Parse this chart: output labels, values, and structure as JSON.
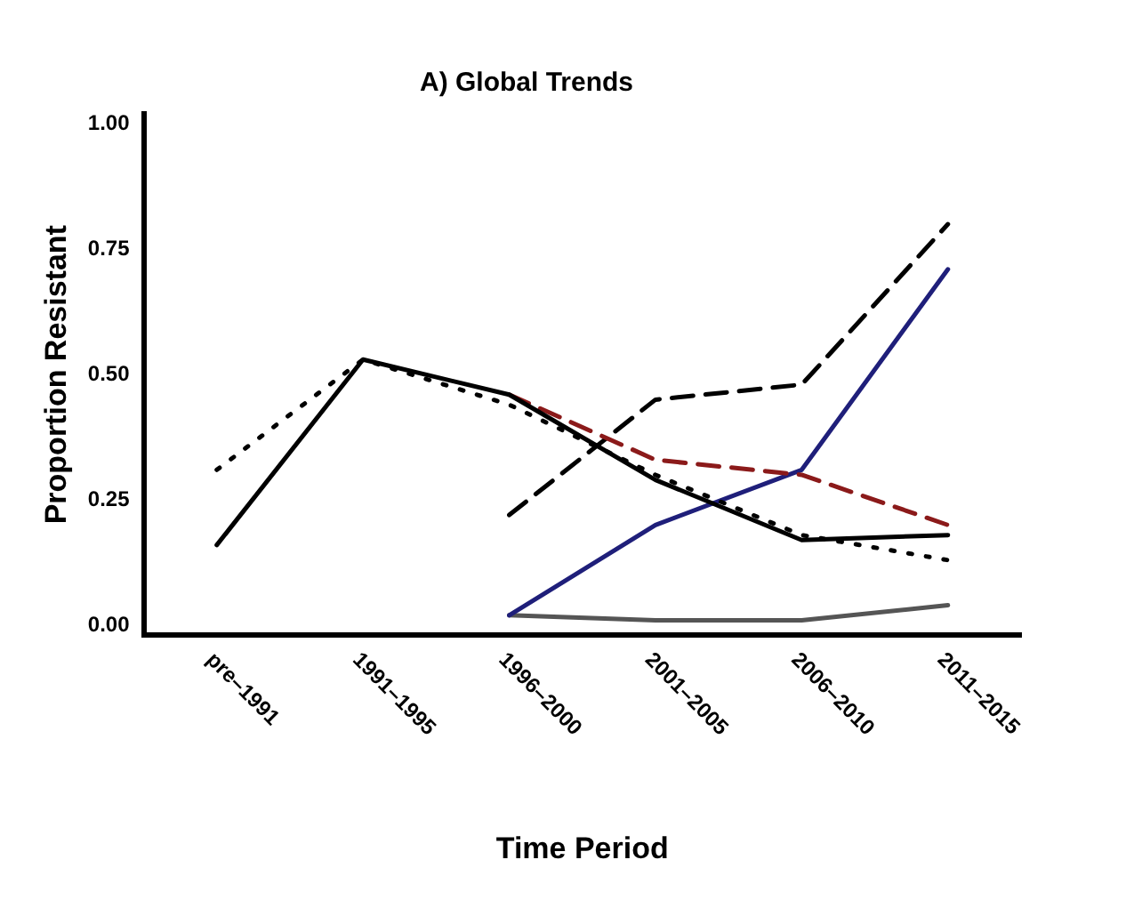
{
  "chart_data": {
    "type": "line",
    "title": "A) Global Trends",
    "xlabel": "Time Period",
    "ylabel": "Proportion Resistant",
    "categories": [
      "pre–1991",
      "1991–1995",
      "1996–2000",
      "2001–2005",
      "2006–2010",
      "2011–2015"
    ],
    "series": [
      {
        "color": "#000000",
        "line_style": "solid",
        "values": [
          0.16,
          0.53,
          0.46,
          0.29,
          0.17,
          0.18
        ]
      },
      {
        "color": "#000000",
        "line_style": "dotted",
        "values": [
          0.31,
          0.53,
          0.44,
          0.3,
          0.18,
          0.13
        ]
      },
      {
        "color": "#8b1a1a",
        "line_style": "dashed",
        "values": [
          null,
          null,
          0.46,
          0.33,
          0.3,
          0.2
        ]
      },
      {
        "color": "#000000",
        "line_style": "dashed",
        "values": [
          null,
          null,
          0.22,
          0.45,
          0.48,
          0.8
        ]
      },
      {
        "color": "#1f1f7a",
        "line_style": "solid",
        "values": [
          null,
          null,
          0.02,
          0.2,
          0.31,
          0.71
        ]
      },
      {
        "color": "#555555",
        "line_style": "solid",
        "values": [
          null,
          null,
          0.02,
          0.01,
          0.01,
          0.04
        ]
      }
    ],
    "ylim": [
      -0.02,
      1.02
    ],
    "yticks": [
      {
        "value": 0,
        "label": "0.00"
      },
      {
        "value": 0.25,
        "label": "0.25"
      },
      {
        "value": 0.5,
        "label": "0.50"
      },
      {
        "value": 0.75,
        "label": "0.75"
      },
      {
        "value": 1,
        "label": "1.00"
      }
    ],
    "grid": false,
    "legend": false,
    "marker": "none"
  }
}
